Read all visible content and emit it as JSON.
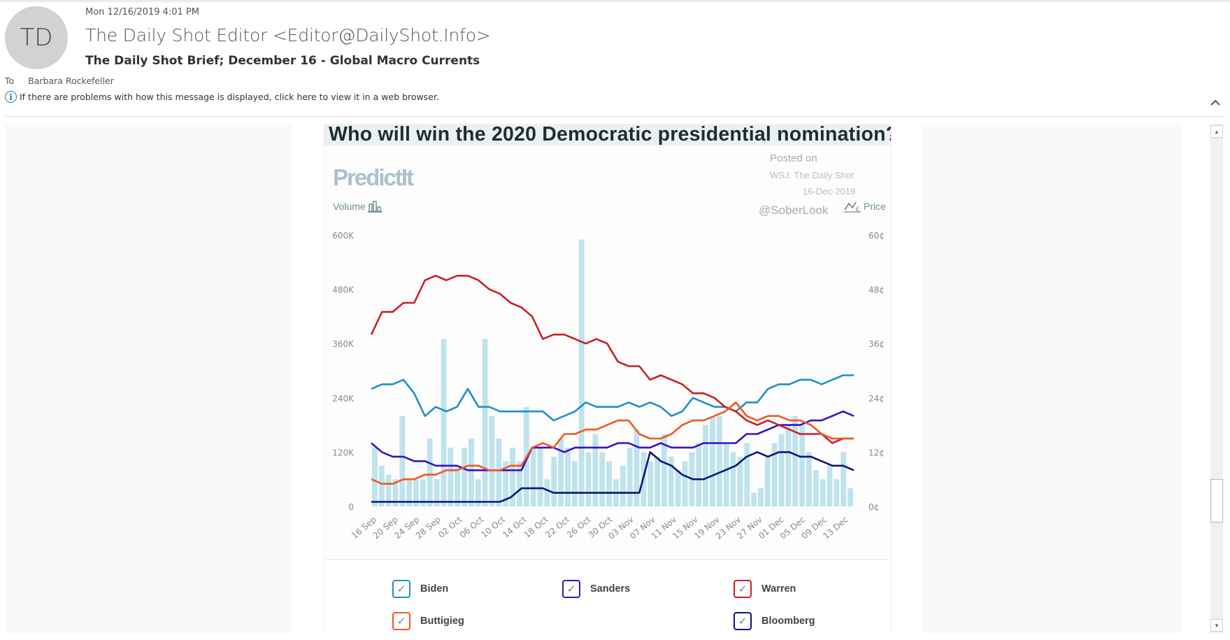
{
  "email": {
    "avatar_initials": "TD",
    "date": "Mon 12/16/2019 4:01 PM",
    "sender": "The Daily Shot Editor <Editor@DailyShot.Info>",
    "subject": "The Daily Shot Brief; December 16 - Global Macro Currents",
    "to_label": "To",
    "to_name": "Barbara Rockefeller",
    "info_message": "If there are problems with how this message is displayed, click here to view it in a web browser.",
    "info_icon": "i",
    "collapse_icon": "chevron-up",
    "scroll_up_icon": "▲",
    "scroll_down_icon": "▼"
  },
  "image": {
    "title": "Who will win the 2020 Democratic presidential nomination?",
    "logo": "PredictIt",
    "volume_label": "Volume",
    "price_label": "Price",
    "posted_line1": "Posted on",
    "posted_line2": "WSJ: The Daily Shot",
    "posted_line3": "16-Dec-2019",
    "watermark": "@SoberLook"
  },
  "chart_data": {
    "type": "line",
    "title": "Who will win the 2020 Democratic presidential nomination?",
    "xlabel": "",
    "ylabel_left": "Volume",
    "ylabel_right": "Price",
    "ylim_left": [
      0,
      600000
    ],
    "ylim_right": [
      0,
      60
    ],
    "left_ticks": [
      "0",
      "120K",
      "240K",
      "360K",
      "480K",
      "600K"
    ],
    "right_ticks": [
      "0¢",
      "12¢",
      "24¢",
      "36¢",
      "48¢",
      "60¢"
    ],
    "x_tick_labels": [
      "16 Sep",
      "20 Sep",
      "24 Sep",
      "28 Sep",
      "02 Oct",
      "06 Oct",
      "10 Oct",
      "14 Oct",
      "18 Oct",
      "22 Oct",
      "26 Oct",
      "30 Oct",
      "03 Nov",
      "07 Nov",
      "11 Nov",
      "15 Nov",
      "19 Nov",
      "23 Nov",
      "27 Nov",
      "01 Dec",
      "05 Dec",
      "09 Dec",
      "13 Dec"
    ],
    "x_start": "16 Sep",
    "x_step_days": 2,
    "legend_position": "bottom",
    "series": [
      {
        "name": "Biden",
        "color": "#1f8fc9",
        "values": [
          26,
          27,
          27,
          28,
          25,
          20,
          22,
          21,
          22,
          26,
          22,
          22,
          21,
          21,
          21,
          21,
          21,
          19,
          20,
          21,
          23,
          22,
          22,
          22,
          23,
          22,
          23,
          22,
          20,
          21,
          24,
          23,
          22,
          22,
          21,
          23,
          23,
          26,
          27,
          27,
          28,
          28,
          27,
          28,
          29,
          29
        ]
      },
      {
        "name": "Sanders",
        "color": "#3612c8",
        "values": [
          14,
          12,
          11,
          11,
          10,
          10,
          9,
          9,
          9,
          8,
          8,
          8,
          8,
          8,
          8,
          13,
          13,
          13,
          12,
          13,
          13,
          13,
          13,
          14,
          14,
          13,
          13,
          14,
          13,
          13,
          13,
          14,
          14,
          14,
          14,
          16,
          16,
          17,
          18,
          18,
          18,
          19,
          19,
          20,
          21,
          20
        ]
      },
      {
        "name": "Warren",
        "color": "#cc1f26",
        "values": [
          38,
          43,
          43,
          45,
          45,
          50,
          51,
          50,
          51,
          51,
          50,
          48,
          47,
          45,
          44,
          42,
          37,
          38,
          38,
          37,
          36,
          37,
          36,
          32,
          31,
          31,
          28,
          29,
          28,
          27,
          25,
          25,
          24,
          22,
          21,
          19,
          18,
          19,
          18,
          17,
          16,
          16,
          16,
          14,
          15,
          15
        ]
      },
      {
        "name": "Buttigieg",
        "color": "#f2571f",
        "values": [
          6,
          5,
          5,
          6,
          6,
          7,
          7,
          8,
          8,
          9,
          9,
          8,
          8,
          9,
          9,
          13,
          14,
          13,
          16,
          16,
          17,
          17,
          18,
          19,
          19,
          16,
          15,
          15,
          16,
          18,
          19,
          19,
          20,
          21,
          23,
          20,
          19,
          20,
          20,
          19,
          19,
          18,
          16,
          15,
          15,
          15
        ]
      },
      {
        "name": "Bloomberg",
        "color": "#0e1576",
        "values": [
          1,
          1,
          1,
          1,
          1,
          1,
          1,
          1,
          1,
          1,
          1,
          1,
          1,
          2,
          4,
          4,
          4,
          3,
          3,
          3,
          3,
          3,
          3,
          3,
          3,
          3,
          12,
          10,
          9,
          7,
          6,
          6,
          7,
          8,
          9,
          11,
          12,
          11,
          12,
          12,
          11,
          11,
          10,
          9,
          9,
          8
        ]
      }
    ],
    "volume_thousands": [
      130,
      90,
      70,
      60,
      200,
      60,
      60,
      60,
      150,
      60,
      370,
      130,
      90,
      130,
      150,
      60,
      370,
      200,
      150,
      100,
      130,
      100,
      220,
      130,
      130,
      60,
      110,
      150,
      130,
      100,
      590,
      120,
      160,
      120,
      100,
      60,
      90,
      130,
      170,
      120,
      100,
      110,
      160,
      110,
      80,
      100,
      120,
      140,
      180,
      200,
      200,
      140,
      120,
      110,
      140,
      30,
      40,
      110,
      140,
      160,
      180,
      200,
      180,
      120,
      80,
      60,
      90,
      60,
      120,
      40
    ]
  },
  "legend": [
    {
      "name": "Biden",
      "color": "#1f8fc9",
      "checked": true
    },
    {
      "name": "Sanders",
      "color": "#3612c8",
      "checked": true
    },
    {
      "name": "Warren",
      "color": "#cc1f26",
      "checked": true
    },
    {
      "name": "Buttigieg",
      "color": "#f2571f",
      "checked": true
    },
    {
      "name": "Bloomberg",
      "color": "#0e1576",
      "checked": true
    }
  ],
  "colors": {
    "volume_bar": "#bfe3ec",
    "axis_text": "#888888",
    "title_bg": "#ebf1f3"
  }
}
